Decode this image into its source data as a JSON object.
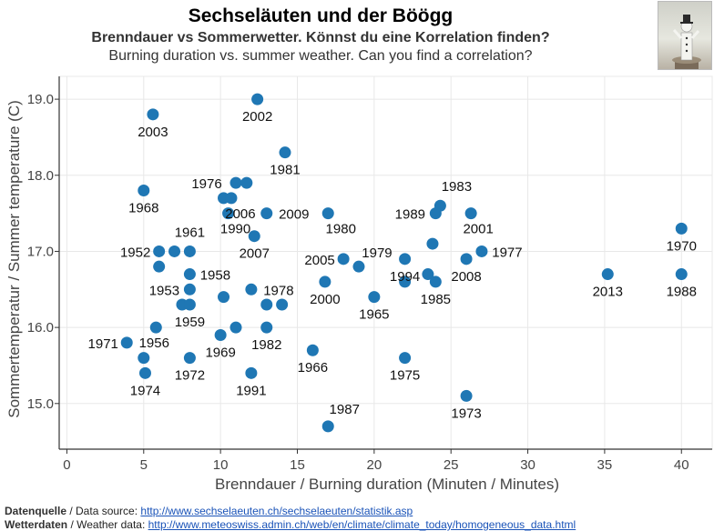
{
  "header": {
    "title": "Sechseläuten und der Böögg",
    "subtitle_de": "Brenndauer vs Sommerwetter. Könnst du eine Korrelation finden?",
    "subtitle_en": "Burning duration vs. summer weather. Can you find a correlation?"
  },
  "footer": {
    "source_label": "Datenquelle",
    "source_text": " / Data source: ",
    "source_url": "http://www.sechselaeuten.ch/sechselaeuten/statistik.asp",
    "weather_label": "Wetterdaten",
    "weather_text": " / Weather data: ",
    "weather_url": "http://www.meteoswiss.admin.ch/web/en/climate/climate_today/homogeneous_data.html"
  },
  "colors": {
    "point": "#1f77b4",
    "grid": "#e8e8e8",
    "axis": "#333333"
  },
  "chart_data": {
    "type": "scatter",
    "xlabel": "Brenndauer / Burning duration (Minuten / Minutes)",
    "ylabel": "Sommertemperatur / Summer temperature (C)",
    "xlim": [
      -0.5,
      42
    ],
    "ylim": [
      14.4,
      19.3
    ],
    "xticks": [
      0,
      5,
      10,
      15,
      20,
      25,
      30,
      35,
      40
    ],
    "yticks": [
      15.0,
      16.0,
      17.0,
      18.0,
      19.0
    ],
    "ytick_labels": [
      "15.0",
      "16.0",
      "17.0",
      "18.0",
      "19.0"
    ],
    "grid": true,
    "points": [
      {
        "x": 12.4,
        "y": 19.0,
        "label": "2002"
      },
      {
        "x": 5.6,
        "y": 18.8,
        "label": "2003"
      },
      {
        "x": 14.2,
        "y": 18.3,
        "label": "1981"
      },
      {
        "x": 5.0,
        "y": 17.8,
        "label": "1968"
      },
      {
        "x": 11.0,
        "y": 17.9,
        "label": "1976"
      },
      {
        "x": 11.7,
        "y": 17.9,
        "label": ""
      },
      {
        "x": 10.2,
        "y": 17.7,
        "label": ""
      },
      {
        "x": 10.7,
        "y": 17.7,
        "label": "2006"
      },
      {
        "x": 10.5,
        "y": 17.5,
        "label": "1990"
      },
      {
        "x": 13.0,
        "y": 17.5,
        "label": "2009"
      },
      {
        "x": 17.0,
        "y": 17.5,
        "label": "1980"
      },
      {
        "x": 12.2,
        "y": 17.2,
        "label": "2007"
      },
      {
        "x": 24.3,
        "y": 17.6,
        "label": "1983"
      },
      {
        "x": 24.0,
        "y": 17.5,
        "label": "1989"
      },
      {
        "x": 26.3,
        "y": 17.5,
        "label": "2001"
      },
      {
        "x": 40.0,
        "y": 17.3,
        "label": "1970"
      },
      {
        "x": 6.0,
        "y": 17.0,
        "label": "1952"
      },
      {
        "x": 7.0,
        "y": 17.0,
        "label": ""
      },
      {
        "x": 8.0,
        "y": 17.0,
        "label": "1961"
      },
      {
        "x": 6.0,
        "y": 16.8,
        "label": ""
      },
      {
        "x": 8.0,
        "y": 16.7,
        "label": "1958"
      },
      {
        "x": 8.0,
        "y": 16.5,
        "label": "1953"
      },
      {
        "x": 7.5,
        "y": 16.3,
        "label": ""
      },
      {
        "x": 8.0,
        "y": 16.3,
        "label": "1959"
      },
      {
        "x": 10.2,
        "y": 16.4,
        "label": ""
      },
      {
        "x": 12.0,
        "y": 16.5,
        "label": "1978"
      },
      {
        "x": 13.0,
        "y": 16.3,
        "label": ""
      },
      {
        "x": 14.0,
        "y": 16.3,
        "label": ""
      },
      {
        "x": 16.8,
        "y": 16.6,
        "label": "2000"
      },
      {
        "x": 18.0,
        "y": 16.9,
        "label": "2005"
      },
      {
        "x": 19.0,
        "y": 16.8,
        "label": "1979"
      },
      {
        "x": 20.0,
        "y": 16.4,
        "label": "1965"
      },
      {
        "x": 22.0,
        "y": 16.9,
        "label": "1994"
      },
      {
        "x": 22.0,
        "y": 16.6,
        "label": ""
      },
      {
        "x": 23.8,
        "y": 17.1,
        "label": ""
      },
      {
        "x": 23.5,
        "y": 16.7,
        "label": ""
      },
      {
        "x": 24.0,
        "y": 16.6,
        "label": "1985"
      },
      {
        "x": 26.0,
        "y": 16.9,
        "label": "2008"
      },
      {
        "x": 27.0,
        "y": 17.0,
        "label": "1977"
      },
      {
        "x": 35.2,
        "y": 16.7,
        "label": "2013"
      },
      {
        "x": 40.0,
        "y": 16.7,
        "label": "1988"
      },
      {
        "x": 5.8,
        "y": 16.0,
        "label": "1956"
      },
      {
        "x": 3.9,
        "y": 15.8,
        "label": "1971"
      },
      {
        "x": 5.0,
        "y": 15.6,
        "label": ""
      },
      {
        "x": 5.1,
        "y": 15.4,
        "label": "1974"
      },
      {
        "x": 8.0,
        "y": 15.6,
        "label": "1972"
      },
      {
        "x": 10.0,
        "y": 15.9,
        "label": "1969"
      },
      {
        "x": 11.0,
        "y": 16.0,
        "label": ""
      },
      {
        "x": 13.0,
        "y": 16.0,
        "label": "1982"
      },
      {
        "x": 12.0,
        "y": 15.4,
        "label": "1991"
      },
      {
        "x": 16.0,
        "y": 15.7,
        "label": "1966"
      },
      {
        "x": 22.0,
        "y": 15.6,
        "label": "1975"
      },
      {
        "x": 26.0,
        "y": 15.1,
        "label": "1973"
      },
      {
        "x": 17.0,
        "y": 14.7,
        "label": "1987"
      }
    ]
  }
}
